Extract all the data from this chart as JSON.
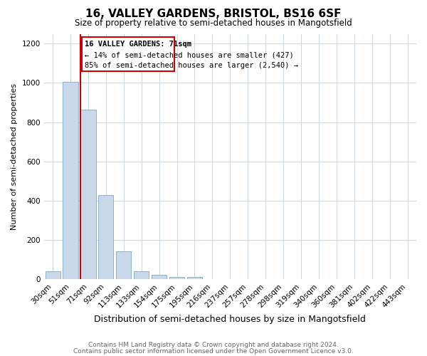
{
  "title": "16, VALLEY GARDENS, BRISTOL, BS16 6SF",
  "subtitle": "Size of property relative to semi-detached houses in Mangotsfield",
  "xlabel": "Distribution of semi-detached houses by size in Mangotsfield",
  "ylabel": "Number of semi-detached properties",
  "footer1": "Contains HM Land Registry data © Crown copyright and database right 2024.",
  "footer2": "Contains public sector information licensed under the Open Government Licence v3.0.",
  "annotation_line1": "16 VALLEY GARDENS: 71sqm",
  "annotation_line2": "← 14% of semi-detached houses are smaller (427)",
  "annotation_line3": "85% of semi-detached houses are larger (2,540) →",
  "categories": [
    "30sqm",
    "51sqm",
    "71sqm",
    "92sqm",
    "113sqm",
    "133sqm",
    "154sqm",
    "175sqm",
    "195sqm",
    "216sqm",
    "237sqm",
    "257sqm",
    "278sqm",
    "298sqm",
    "319sqm",
    "340sqm",
    "360sqm",
    "381sqm",
    "402sqm",
    "422sqm",
    "443sqm"
  ],
  "values": [
    40,
    1005,
    865,
    427,
    143,
    40,
    22,
    12,
    10,
    0,
    0,
    0,
    0,
    0,
    0,
    0,
    0,
    0,
    0,
    0,
    0
  ],
  "bar_color": "#c8d8e8",
  "bar_edge_color": "#7aaac8",
  "red_line_color": "#cc0000",
  "annotation_box_edge_color": "#cc0000",
  "annotation_box_face_color": "#ffffff",
  "ylim": [
    0,
    1250
  ],
  "yticks": [
    0,
    200,
    400,
    600,
    800,
    1000,
    1200
  ],
  "background_color": "#ffffff",
  "grid_color": "#d0d8e0",
  "title_fontsize": 11,
  "subtitle_fontsize": 8.5,
  "xlabel_fontsize": 9,
  "ylabel_fontsize": 8,
  "tick_fontsize": 7.5,
  "annotation_fontsize": 7.5,
  "footer_fontsize": 6.5,
  "highlight_bin_index": 2
}
